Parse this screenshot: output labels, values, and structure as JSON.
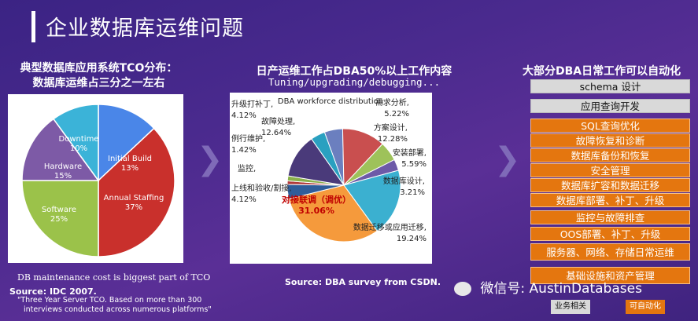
{
  "title": "企业数据库运维问题",
  "left": {
    "title_line1": "典型数据库应用系统TCO分布：",
    "title_line2": "数据库运维占三分之一左右",
    "note": "DB maintenance cost is biggest part of TCO",
    "source": "Source: IDC 2007.",
    "quote_line1": "\"Three Year Server TCO. Based on more than 300",
    "quote_line2": "interviews conducted across numerous platforms\""
  },
  "middle": {
    "title": "日产运维工作占DBA50%以上工作内容",
    "subtitle": "Tuning/upgrading/debugging...",
    "source": "Source:  DBA survey from CSDN."
  },
  "right": {
    "title": "大部分DBA日常工作可以自动化",
    "items": [
      {
        "label": "schema 设计",
        "style": "gray"
      },
      {
        "label": "应用查询开发",
        "style": "gray"
      },
      {
        "label": "SQL查询优化",
        "style": "orange"
      },
      {
        "label": "故障恢复和诊断",
        "style": "orange"
      },
      {
        "label": "数据库备份和恢复",
        "style": "orange"
      },
      {
        "label": "安全管理",
        "style": "orange"
      },
      {
        "label": "数据库扩容和数据迁移",
        "style": "orange"
      },
      {
        "label": "数据库部署、补丁、升级",
        "style": "orange"
      },
      {
        "label": "监控与故障排查",
        "style": "orange"
      },
      {
        "label": "OOS部署、补丁、升级",
        "style": "orange"
      },
      {
        "label": "服务器、网络、存储日常运维",
        "style": "orange"
      },
      {
        "label": "基础设施和资产管理",
        "style": "orange"
      }
    ],
    "legend": [
      {
        "label": "业务相关",
        "color": "#d9d9d9"
      },
      {
        "label": "可自动化",
        "color": "#e4760f"
      }
    ]
  },
  "watermark": "微信号: AustinDatabases",
  "chart_data": [
    {
      "type": "pie",
      "categories": [
        "Initial Build",
        "Annual Staffing",
        "Software",
        "Hardware",
        "Downtime"
      ],
      "values": [
        13,
        37,
        25,
        15,
        10
      ],
      "labels": [
        "13%",
        "37%",
        "25%",
        "15%",
        "10%"
      ],
      "colors": [
        "#4a86e8",
        "#c9302c",
        "#9bc24a",
        "#7d5aa6",
        "#3bb3d8"
      ]
    },
    {
      "type": "pie",
      "title": "DBA workforce distribution",
      "categories": [
        "需求分析,",
        "方案设计,",
        "安装部署,",
        "数据库设计,",
        "数据迁移或应用迁移,",
        "对接联调（调优）",
        "上线和验收/割接,",
        "监控,",
        "例行维护,",
        "故障处理,",
        "升级打补丁,"
      ],
      "values": [
        5.22,
        12.28,
        5.59,
        3.21,
        19.24,
        31.06,
        4.12,
        1.0,
        1.42,
        12.64,
        4.12
      ],
      "labels": [
        "5.22%",
        "12.28%",
        "5.59%",
        "3.21%",
        "19.24%",
        "31.06%",
        "4.12%",
        "",
        "1.42%",
        "12.64%",
        "4.12%"
      ],
      "colors": [
        "#6b7fbf",
        "#c94f4f",
        "#9ec25a",
        "#6d5aa8",
        "#3bb0d0",
        "#f59a3c",
        "#2f5d9a",
        "#b03a3a",
        "#8ab04a",
        "#4a3a7a",
        "#2aa0c0"
      ]
    }
  ]
}
